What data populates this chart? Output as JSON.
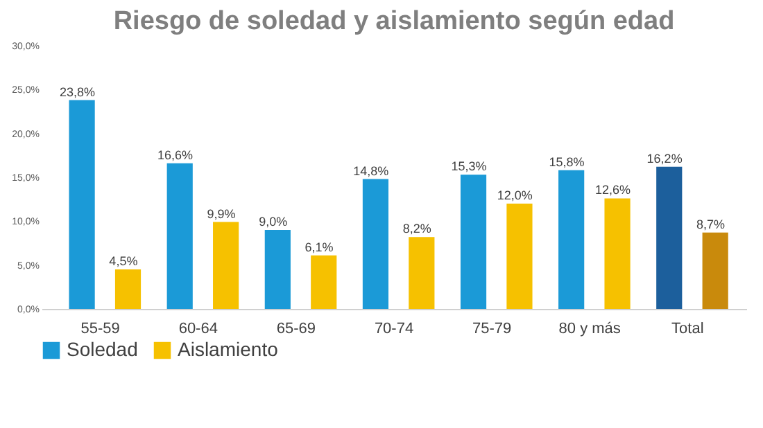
{
  "chart_data": {
    "type": "bar",
    "title": "Riesgo de soledad y aislamiento según edad",
    "categories": [
      "55-59",
      "60-64",
      "65-69",
      "70-74",
      "75-79",
      "80 y más",
      "Total"
    ],
    "series": [
      {
        "name": "Soledad",
        "color": "#1b9ad7",
        "colors": [
          "#1b9ad7",
          "#1b9ad7",
          "#1b9ad7",
          "#1b9ad7",
          "#1b9ad7",
          "#1b9ad7",
          "#1c5f9c"
        ],
        "values": [
          23.8,
          16.6,
          9.0,
          14.8,
          15.3,
          15.8,
          16.2
        ],
        "value_labels": [
          "23,8%",
          "16,6%",
          "9,0%",
          "14,8%",
          "15,3%",
          "15,8%",
          "16,2%"
        ]
      },
      {
        "name": "Aislamiento",
        "color": "#f6c100",
        "colors": [
          "#f6c100",
          "#f6c100",
          "#f6c100",
          "#f6c100",
          "#f6c100",
          "#f6c100",
          "#c98a0c"
        ],
        "values": [
          4.5,
          9.9,
          6.1,
          8.2,
          12.0,
          12.6,
          8.7
        ],
        "value_labels": [
          "4,5%",
          "9,9%",
          "6,1%",
          "8,2%",
          "12,0%",
          "12,6%",
          "8,7%"
        ]
      }
    ],
    "ylim": [
      0,
      30
    ],
    "yticks": [
      {
        "value": 0,
        "label": "0,0%"
      },
      {
        "value": 5,
        "label": "5,0%"
      },
      {
        "value": 10,
        "label": "10,0%"
      },
      {
        "value": 15,
        "label": "15,0%"
      },
      {
        "value": 20,
        "label": "20,0%"
      },
      {
        "value": 25,
        "label": "25,0%"
      },
      {
        "value": 30,
        "label": "30,0%"
      }
    ],
    "legend": "bottom"
  }
}
